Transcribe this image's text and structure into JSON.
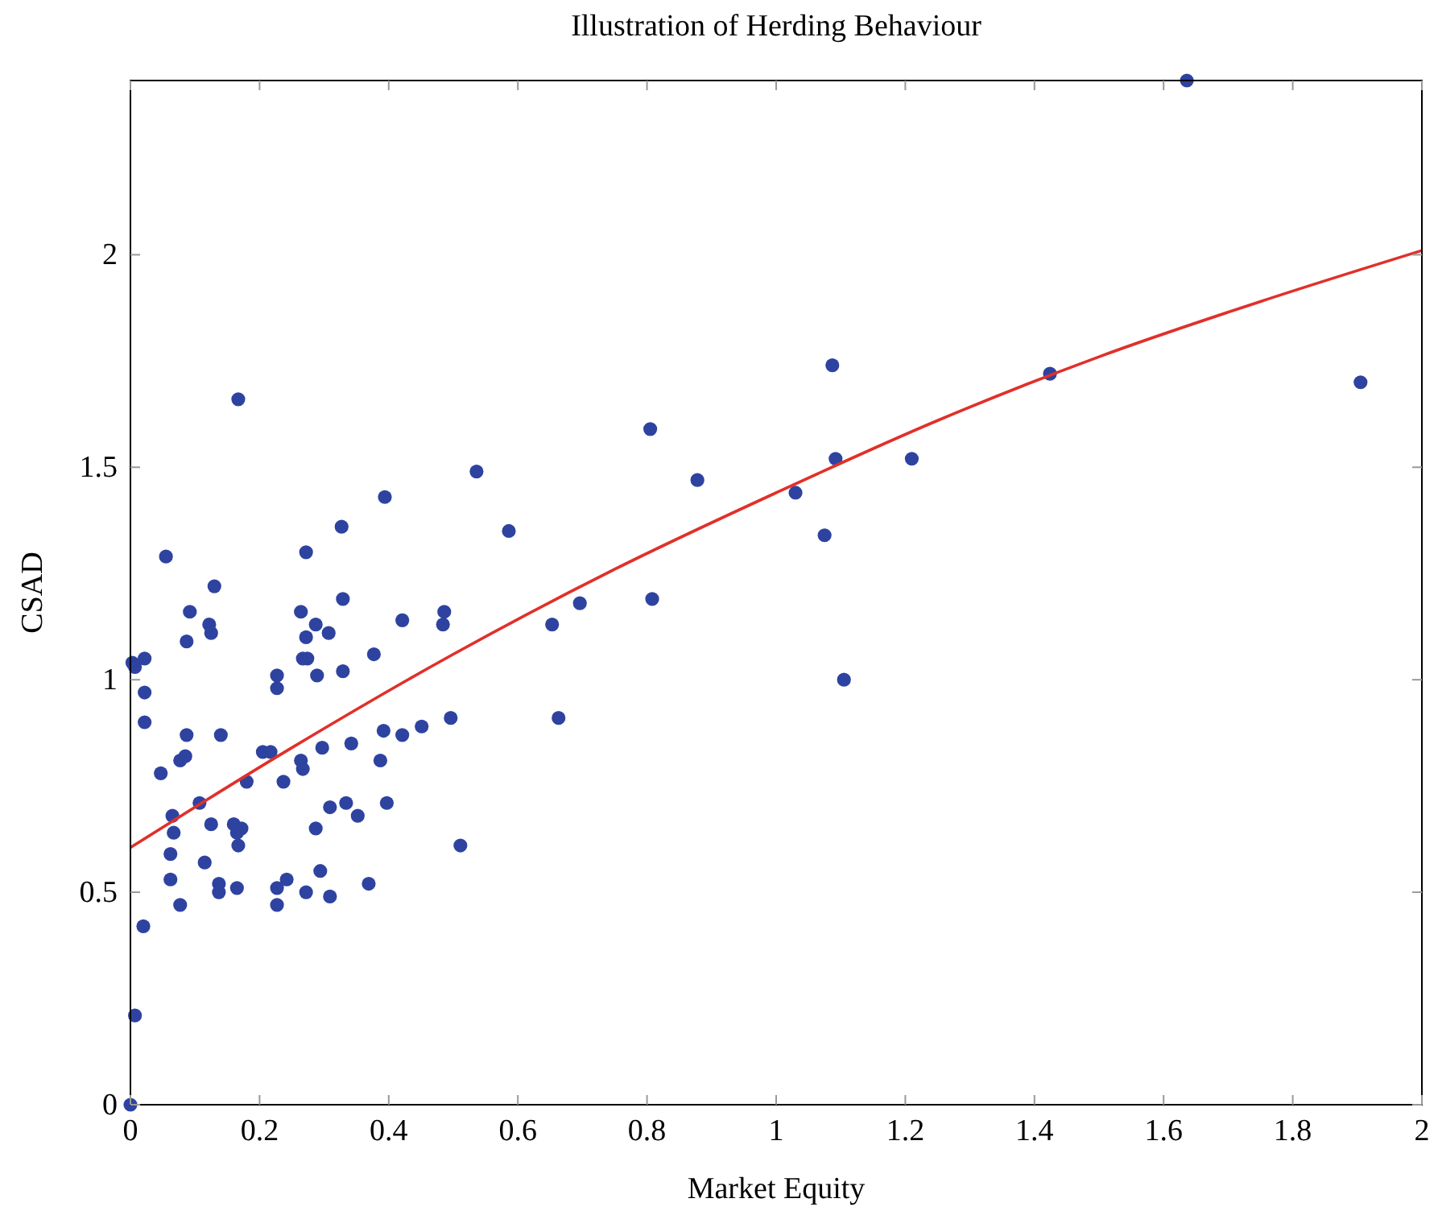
{
  "chart_data": {
    "type": "scatter",
    "title": "Illustration of Herding Behaviour",
    "xlabel": "Market Equity",
    "ylabel": "CSAD",
    "xlim": [
      0,
      2
    ],
    "xticks": [
      0,
      0.2,
      0.4,
      0.6,
      0.8,
      1,
      1.2,
      1.4,
      1.6,
      1.8,
      2
    ],
    "ylim": [
      0,
      2.41
    ],
    "yticks": [
      0,
      0.5,
      1,
      1.5,
      2
    ],
    "grid": false,
    "series": [
      {
        "marker": "circle",
        "color": "#2e43a0",
        "x": [
          0,
          0.007,
          0.003,
          0.007,
          0.022,
          0.022,
          0.022,
          0.02,
          0.047,
          0.055,
          0.065,
          0.062,
          0.067,
          0.062,
          0.077,
          0.077,
          0.085,
          0.087,
          0.087,
          0.092,
          0.107,
          0.115,
          0.122,
          0.125,
          0.13,
          0.125,
          0.137,
          0.137,
          0.14,
          0.167,
          0.16,
          0.165,
          0.172,
          0.167,
          0.165,
          0.18,
          0.205,
          0.217,
          0.227,
          0.227,
          0.237,
          0.242,
          0.227,
          0.227,
          0.264,
          0.267,
          0.264,
          0.267,
          0.272,
          0.272,
          0.274,
          0.272,
          0.287,
          0.289,
          0.287,
          0.294,
          0.297,
          0.307,
          0.309,
          0.309,
          0.327,
          0.329,
          0.329,
          0.334,
          0.342,
          0.352,
          0.369,
          0.377,
          0.387,
          0.392,
          0.394,
          0.397,
          0.421,
          0.421,
          0.451,
          0.486,
          0.484,
          0.496,
          0.511,
          0.536,
          0.586,
          0.653,
          0.663,
          0.696,
          0.805,
          0.808,
          0.878,
          1.03,
          1.075,
          1.087,
          1.092,
          1.105,
          1.21,
          1.424,
          1.636,
          1.905
        ],
        "values": [
          0,
          0.21,
          1.04,
          1.03,
          1.05,
          0.97,
          0.9,
          0.42,
          0.78,
          1.29,
          0.68,
          0.59,
          0.64,
          0.53,
          0.47,
          0.81,
          0.82,
          0.87,
          1.09,
          1.16,
          0.71,
          0.57,
          1.13,
          1.11,
          1.22,
          0.66,
          0.52,
          0.5,
          0.87,
          1.66,
          0.66,
          0.64,
          0.65,
          0.61,
          0.51,
          0.76,
          0.83,
          0.83,
          1.01,
          0.98,
          0.76,
          0.53,
          0.51,
          0.47,
          0.81,
          0.79,
          1.16,
          1.05,
          1.1,
          1.3,
          1.05,
          0.5,
          1.13,
          1.01,
          0.65,
          0.55,
          0.84,
          1.11,
          0.7,
          0.49,
          1.36,
          1.19,
          1.02,
          0.71,
          0.85,
          0.68,
          0.52,
          1.06,
          0.81,
          0.88,
          1.43,
          0.71,
          0.87,
          1.14,
          0.89,
          1.16,
          1.13,
          0.91,
          0.61,
          1.49,
          1.35,
          1.13,
          0.91,
          1.18,
          1.59,
          1.19,
          1.47,
          1.44,
          1.34,
          1.74,
          1.52,
          1,
          1.52,
          1.72,
          2.41,
          1.7
        ]
      },
      {
        "type": "line",
        "marker": "none",
        "color": "#e0302a",
        "line_style": "solid",
        "x": [
          0,
          0.25,
          0.5,
          0.75,
          1,
          1.25,
          1.5,
          1.75,
          2
        ],
        "values": [
          0.605,
          0.84,
          1.06,
          1.26,
          1.44,
          1.61,
          1.76,
          1.89,
          2.01
        ]
      }
    ]
  }
}
